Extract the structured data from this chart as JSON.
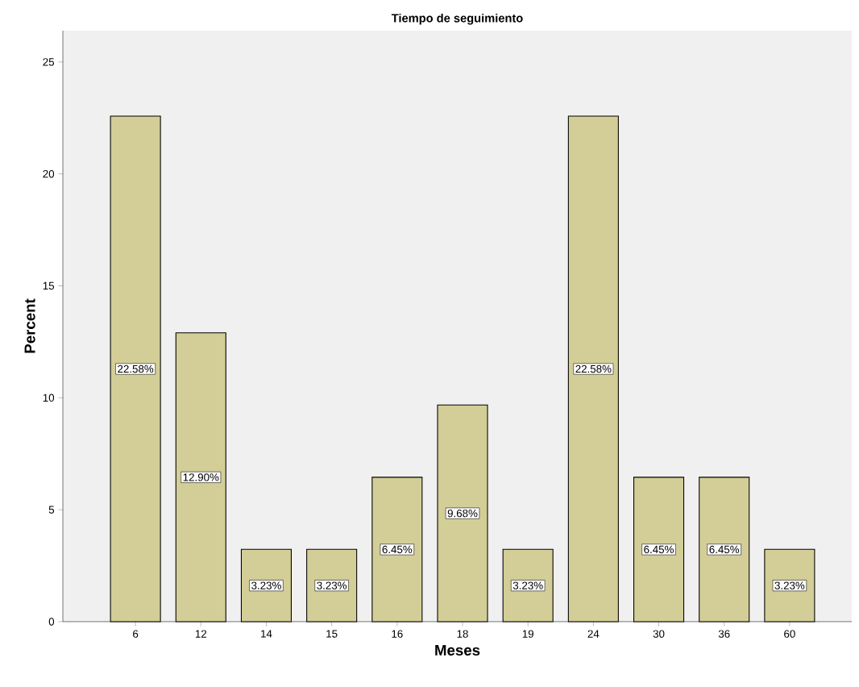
{
  "chart_data": {
    "type": "bar",
    "title": "Tiempo de seguimiento",
    "xlabel": "Meses",
    "ylabel": "Percent",
    "categories": [
      "6",
      "12",
      "14",
      "15",
      "16",
      "18",
      "19",
      "24",
      "30",
      "36",
      "60"
    ],
    "values": [
      22.58,
      12.9,
      3.23,
      3.23,
      6.45,
      9.68,
      3.23,
      22.58,
      6.45,
      6.45,
      3.23
    ],
    "value_labels": [
      "22.58%",
      "12.90%",
      "3.23%",
      "3.23%",
      "6.45%",
      "9.68%",
      "3.23%",
      "22.58%",
      "6.45%",
      "6.45%",
      "3.23%"
    ],
    "color": "#d3ce97",
    "ylim": [
      0,
      26.4
    ],
    "yticks": [
      0,
      5,
      10,
      15,
      20,
      25
    ]
  }
}
